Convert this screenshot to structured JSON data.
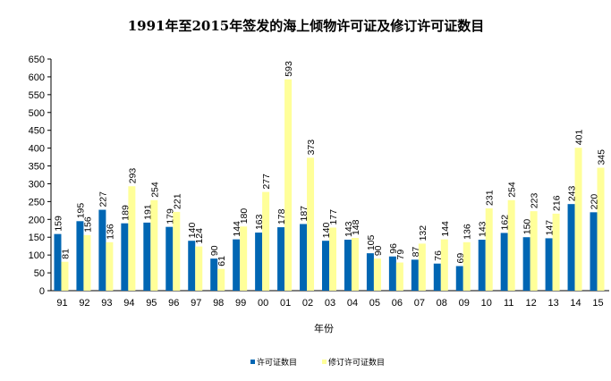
{
  "chart_data": {
    "type": "bar",
    "title": "1991年至2015年签发的海上倾物许可证及修订许可证数目",
    "xlabel": "年份",
    "ylabel": "",
    "ylim": [
      0,
      650
    ],
    "yticks": [
      0,
      50,
      100,
      150,
      200,
      250,
      300,
      350,
      400,
      450,
      500,
      550,
      600,
      650
    ],
    "grid": false,
    "legend_position": "bottom",
    "categories": [
      "91",
      "92",
      "93",
      "94",
      "95",
      "96",
      "97",
      "98",
      "99",
      "00",
      "01",
      "02",
      "03",
      "04",
      "05",
      "06",
      "07",
      "08",
      "09",
      "10",
      "11",
      "12",
      "13",
      "14",
      "15"
    ],
    "series": [
      {
        "name": "许可证数目",
        "color": "#0066B3",
        "values": [
          159,
          195,
          227,
          189,
          191,
          179,
          140,
          90,
          144,
          163,
          178,
          187,
          140,
          143,
          105,
          96,
          87,
          76,
          69,
          143,
          162,
          150,
          147,
          243,
          220
        ]
      },
      {
        "name": "修订许可证数目",
        "color": "#FFFF99",
        "values": [
          81,
          156,
          136,
          293,
          254,
          221,
          124,
          61,
          180,
          277,
          593,
          373,
          177,
          148,
          90,
          79,
          132,
          144,
          136,
          231,
          254,
          223,
          216,
          401,
          345
        ]
      }
    ]
  }
}
